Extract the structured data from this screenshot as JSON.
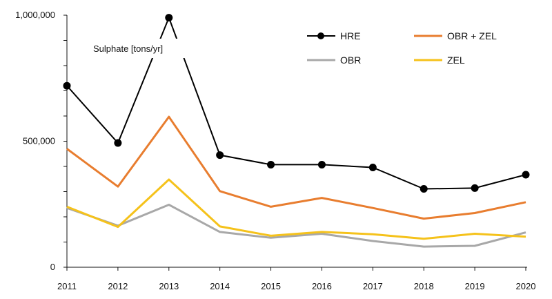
{
  "chart_data": {
    "type": "line",
    "title": "",
    "xlabel": "",
    "ylabel": "",
    "annotation": "Sulphate [tons/yr]",
    "x": [
      2011,
      2012,
      2013,
      2014,
      2015,
      2016,
      2017,
      2018,
      2019,
      2020
    ],
    "x_tick_labels": [
      "2011",
      "2012",
      "2013",
      "2014",
      "2015",
      "2016",
      "2017",
      "2018",
      "2019",
      "2020"
    ],
    "ylim": [
      0,
      1000000
    ],
    "y_ticks": [
      0,
      100000,
      200000,
      300000,
      400000,
      500000,
      600000,
      700000,
      800000,
      900000,
      1000000
    ],
    "y_tick_labels": [
      {
        "value": 0,
        "label": "0"
      },
      {
        "value": 500000,
        "label": "500,000"
      },
      {
        "value": 1000000,
        "label": "1,000,000"
      }
    ],
    "grid": false,
    "legend_position": "top-right",
    "series": [
      {
        "name": "HRE",
        "color": "#000000",
        "marker": "circle",
        "values": [
          720000,
          493000,
          990000,
          445000,
          407000,
          407000,
          396000,
          311000,
          314000,
          367000
        ]
      },
      {
        "name": "OBR + ZEL",
        "color": "#e87d2f",
        "marker": "none",
        "values": [
          470000,
          320000,
          597000,
          302000,
          240000,
          275000,
          235000,
          193000,
          215000,
          258000
        ]
      },
      {
        "name": "OBR",
        "color": "#a8a8a8",
        "marker": "none",
        "values": [
          235000,
          165000,
          248000,
          140000,
          117000,
          133000,
          104000,
          82000,
          85000,
          138000
        ]
      },
      {
        "name": "ZEL",
        "color": "#f5c21b",
        "marker": "none",
        "values": [
          240000,
          160000,
          348000,
          162000,
          125000,
          140000,
          131000,
          113000,
          133000,
          121000
        ]
      }
    ]
  }
}
